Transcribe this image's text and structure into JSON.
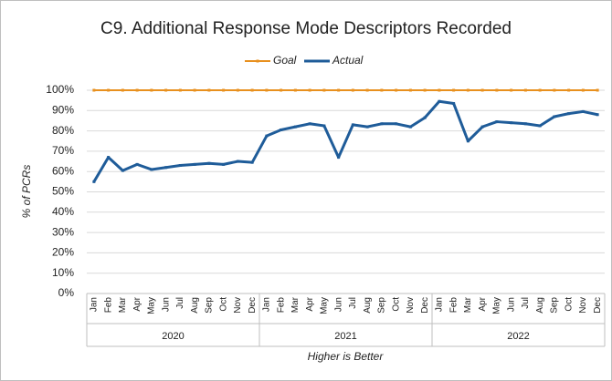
{
  "chart_data": {
    "type": "line",
    "title": "C9. Additional Response Mode Descriptors Recorded",
    "y_label": "% of PCRs",
    "x_label": "Higher is Better",
    "categories": [
      "Jan",
      "Feb",
      "Mar",
      "Apr",
      "May",
      "Jun",
      "Jul",
      "Aug",
      "Sep",
      "Oct",
      "Nov",
      "Dec",
      "Jan",
      "Feb",
      "Mar",
      "Apr",
      "May",
      "Jun",
      "Jul",
      "Aug",
      "Sep",
      "Oct",
      "Nov",
      "Dec",
      "Jan",
      "Feb",
      "Mar",
      "Apr",
      "May",
      "Jun",
      "Jul",
      "Aug",
      "Sep",
      "Oct",
      "Nov",
      "Dec"
    ],
    "year_groups": [
      "2020",
      "2021",
      "2022"
    ],
    "series": [
      {
        "name": "Goal",
        "color": "#e8901e",
        "values": [
          100,
          100,
          100,
          100,
          100,
          100,
          100,
          100,
          100,
          100,
          100,
          100,
          100,
          100,
          100,
          100,
          100,
          100,
          100,
          100,
          100,
          100,
          100,
          100,
          100,
          100,
          100,
          100,
          100,
          100,
          100,
          100,
          100,
          100,
          100,
          100
        ]
      },
      {
        "name": "Actual",
        "color": "#1f5c99",
        "values": [
          55,
          67,
          60.5,
          63.5,
          61,
          62,
          63,
          63.5,
          64,
          63.5,
          65,
          64.5,
          77.5,
          80.5,
          82,
          83.5,
          82.5,
          67,
          83,
          82,
          83.5,
          83.5,
          82,
          86.5,
          94.5,
          93.5,
          75,
          82,
          84.5,
          84,
          83.5,
          82.5,
          87,
          88.5,
          89.5,
          88
        ]
      }
    ],
    "ylim": [
      0,
      100
    ],
    "yticks": [
      {
        "value": 0,
        "label": "0%"
      },
      {
        "value": 10,
        "label": "10%"
      },
      {
        "value": 20,
        "label": "20%"
      },
      {
        "value": 30,
        "label": "30%"
      },
      {
        "value": 40,
        "label": "40%"
      },
      {
        "value": 50,
        "label": "50%"
      },
      {
        "value": 60,
        "label": "60%"
      },
      {
        "value": 70,
        "label": "70%"
      },
      {
        "value": 80,
        "label": "80%"
      },
      {
        "value": 90,
        "label": "90%"
      },
      {
        "value": 100,
        "label": "100%"
      }
    ],
    "grid": true,
    "legend": "top"
  }
}
